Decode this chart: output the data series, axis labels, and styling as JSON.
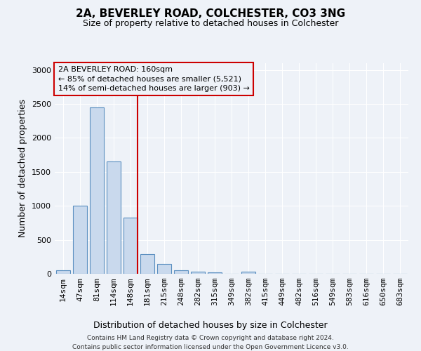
{
  "title1": "2A, BEVERLEY ROAD, COLCHESTER, CO3 3NG",
  "title2": "Size of property relative to detached houses in Colchester",
  "xlabel": "Distribution of detached houses by size in Colchester",
  "ylabel": "Number of detached properties",
  "categories": [
    "14sqm",
    "47sqm",
    "81sqm",
    "114sqm",
    "148sqm",
    "181sqm",
    "215sqm",
    "248sqm",
    "282sqm",
    "315sqm",
    "349sqm",
    "382sqm",
    "415sqm",
    "449sqm",
    "482sqm",
    "516sqm",
    "549sqm",
    "583sqm",
    "616sqm",
    "650sqm",
    "683sqm"
  ],
  "values": [
    50,
    1000,
    2450,
    1650,
    830,
    290,
    145,
    50,
    35,
    25,
    0,
    30,
    0,
    0,
    0,
    0,
    0,
    0,
    0,
    0,
    0
  ],
  "bar_color": "#c9d9ed",
  "bar_edge_color": "#5a8fc0",
  "vline_x_index": 4.42,
  "vline_color": "#cc0000",
  "annotation_title": "2A BEVERLEY ROAD: 160sqm",
  "annotation_line2": "← 85% of detached houses are smaller (5,521)",
  "annotation_line3": "14% of semi-detached houses are larger (903) →",
  "ylim": [
    0,
    3100
  ],
  "yticks": [
    0,
    500,
    1000,
    1500,
    2000,
    2500,
    3000
  ],
  "footer1": "Contains HM Land Registry data © Crown copyright and database right 2024.",
  "footer2": "Contains public sector information licensed under the Open Government Licence v3.0.",
  "bg_color": "#eef2f8",
  "grid_color": "#ffffff",
  "title_fontsize": 11,
  "subtitle_fontsize": 9,
  "ylabel_fontsize": 9,
  "xlabel_fontsize": 9,
  "tick_fontsize": 8,
  "ann_fontsize": 8,
  "footer_fontsize": 6.5
}
